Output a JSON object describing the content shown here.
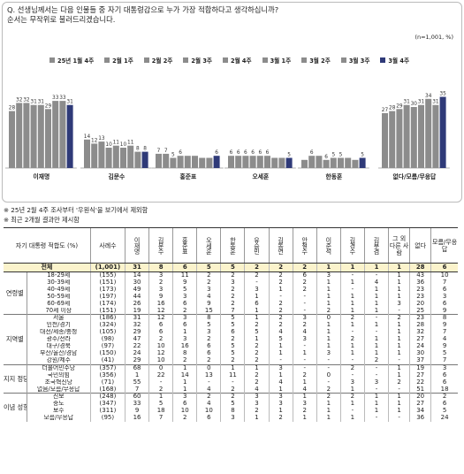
{
  "question_line1": "Q. 선생님께서는 다음 인물들 중 자기 대통령감으로 누가 가장 적합하다고 생각하십니까?",
  "question_line2": "순서는 무작위로 불러드리겠습니다.",
  "sample_note": "(n=1,001, %)",
  "note1": "※ 25년 2월 4주 조사부터 '우원식'을 보기에서 제외함",
  "note2": "※ 최근 2개월 결과만 제시함",
  "colors": {
    "gray": "#8c8c8c",
    "navy": "#2f3a78"
  },
  "chart_data": {
    "type": "bar",
    "periods": [
      "25년 1월 4주",
      "2월 1주",
      "2월 2주",
      "2월 3주",
      "2월 4주",
      "3월 1주",
      "3월 2주",
      "3월 3주",
      "3월 4주"
    ],
    "categories": [
      "이재명",
      "김문수",
      "홍준표",
      "오세훈",
      "한동훈",
      "없다/모름/무응답"
    ],
    "values": [
      [
        28,
        32,
        32,
        31,
        31,
        29,
        33,
        33,
        31
      ],
      [
        14,
        12,
        13,
        10,
        11,
        10,
        11,
        8,
        8
      ],
      [
        7,
        7,
        5,
        6,
        6,
        6,
        5,
        5,
        6
      ],
      [
        6,
        6,
        6,
        6,
        6,
        6,
        5,
        5,
        5
      ],
      [
        4,
        6,
        6,
        4,
        5,
        5,
        5,
        4,
        5
      ],
      [
        27,
        28,
        29,
        31,
        30,
        31,
        34,
        31,
        35
      ]
    ],
    "labels": [
      [
        "28",
        "32",
        "32",
        "31",
        "31",
        "29",
        "33",
        "33",
        "31"
      ],
      [
        "14",
        "12",
        "13",
        "10",
        "11",
        "10",
        "11",
        "8",
        "8"
      ],
      [
        "7",
        "7",
        "5",
        "6",
        "",
        "",
        "",
        "",
        "6"
      ],
      [
        "6",
        "6",
        "6",
        "6",
        "6",
        "6",
        "",
        "",
        "5"
      ],
      [
        "",
        "6",
        "",
        "6",
        "5",
        "5",
        "",
        "",
        "5"
      ],
      [
        "27",
        "28",
        "29",
        "31",
        "30",
        "31",
        "34",
        "31",
        "35"
      ]
    ]
  },
  "table": {
    "headers": [
      "자기 대통령 적합도 (%)",
      "사례수",
      "이재명",
      "김문수",
      "홍준표",
      "오세훈",
      "한동훈",
      "유승민",
      "김동연",
      "안철수",
      "이준석",
      "김경수",
      "김부겸",
      "그 외 다른 사람",
      "없다",
      "모름/무응답"
    ],
    "total": [
      "전체",
      "(1,001)",
      "31",
      "8",
      "6",
      "5",
      "5",
      "2",
      "2",
      "2",
      "1",
      "1",
      "1",
      "1",
      "28",
      "6"
    ],
    "groups": [
      {
        "name": "연령별",
        "rows": [
          [
            "18-29세",
            "(155)",
            "14",
            "3",
            "11",
            "2",
            "2",
            "2",
            "2",
            "6",
            "3",
            "-",
            "-",
            "1",
            "43",
            "10"
          ],
          [
            "30-39세",
            "(151)",
            "30",
            "2",
            "9",
            "2",
            "3",
            "-",
            "2",
            "2",
            "1",
            "1",
            "4",
            "1",
            "36",
            "7"
          ],
          [
            "40-49세",
            "(173)",
            "49",
            "3",
            "5",
            "3",
            "2",
            "3",
            "1",
            "2",
            "1",
            "-",
            "1",
            "1",
            "23",
            "6"
          ],
          [
            "50-59세",
            "(197)",
            "44",
            "9",
            "3",
            "4",
            "2",
            "1",
            "-",
            "-",
            "1",
            "1",
            "1",
            "1",
            "23",
            "3"
          ],
          [
            "60-69세",
            "(174)",
            "26",
            "16",
            "6",
            "9",
            "2",
            "6",
            "2",
            "-",
            "1",
            "1",
            "1",
            "3",
            "20",
            "6"
          ],
          [
            "70세 이상",
            "(151)",
            "19",
            "12",
            "2",
            "15",
            "7",
            "1",
            "2",
            "-",
            "2",
            "1",
            "1",
            "-",
            "25",
            "9"
          ]
        ]
      },
      {
        "name": "지역별",
        "rows": [
          [
            "서울",
            "(186)",
            "31",
            "12",
            "3",
            "8",
            "5",
            "1",
            "2",
            "3",
            "0",
            "2",
            "-",
            "2",
            "23",
            "8"
          ],
          [
            "인천/경기",
            "(324)",
            "32",
            "6",
            "6",
            "5",
            "5",
            "2",
            "2",
            "2",
            "1",
            "1",
            "1",
            "1",
            "28",
            "9"
          ],
          [
            "대전/세종/충청",
            "(105)",
            "29",
            "6",
            "1",
            "3",
            "6",
            "5",
            "4",
            "4",
            "1",
            "-",
            "-",
            "1",
            "32",
            "7"
          ],
          [
            "광주/전라",
            "(98)",
            "47",
            "2",
            "3",
            "2",
            "2",
            "1",
            "5",
            "3",
            "1",
            "2",
            "1",
            "1",
            "27",
            "4"
          ],
          [
            "대구/경북",
            "(97)",
            "22",
            "10",
            "16",
            "6",
            "5",
            "2",
            "1",
            "-",
            "1",
            "1",
            "1",
            "1",
            "24",
            "9"
          ],
          [
            "부산/울산/경남",
            "(150)",
            "24",
            "12",
            "8",
            "6",
            "5",
            "2",
            "1",
            "1",
            "3",
            "1",
            "1",
            "1",
            "30",
            "5"
          ],
          [
            "강원/제주",
            "(41)",
            "29",
            "10",
            "2",
            "2",
            "2",
            "2",
            "-",
            "-",
            "-",
            "-",
            "2",
            "-",
            "37",
            "7"
          ]
        ]
      },
      {
        "name": "지지 정당별",
        "rows": [
          [
            "더불어민주당",
            "(357)",
            "68",
            "0",
            "1",
            "0",
            "1",
            "1",
            "3",
            "-",
            "-",
            "2",
            "-",
            "1",
            "19",
            "3"
          ],
          [
            "국민의힘",
            "(356)",
            "1",
            "22",
            "14",
            "13",
            "11",
            "2",
            "1",
            "2",
            "0",
            "-",
            "-",
            "1",
            "27",
            "6"
          ],
          [
            "조국혁신당",
            "(71)",
            "55",
            "-",
            "1",
            "-",
            "-",
            "2",
            "4",
            "1",
            "-",
            "3",
            "3",
            "2",
            "22",
            "6"
          ],
          [
            "없음/모름/무응답",
            "(168)",
            "7",
            "2",
            "1",
            "4",
            "2",
            "4",
            "1",
            "4",
            "2",
            "1",
            "-",
            "-",
            "51",
            "18"
          ]
        ]
      },
      {
        "name": "이념 성향별",
        "rows": [
          [
            "진보",
            "(248)",
            "60",
            "1",
            "3",
            "2",
            "2",
            "3",
            "3",
            "1",
            "2",
            "2",
            "1",
            "1",
            "20",
            "2"
          ],
          [
            "중도",
            "(347)",
            "33",
            "5",
            "6",
            "4",
            "5",
            "3",
            "3",
            "3",
            "1",
            "1",
            "1",
            "1",
            "27",
            "6"
          ],
          [
            "보수",
            "(311)",
            "9",
            "18",
            "10",
            "10",
            "8",
            "2",
            "1",
            "2",
            "1",
            "-",
            "1",
            "1",
            "34",
            "5"
          ],
          [
            "모름/무응답",
            "(95)",
            "16",
            "7",
            "2",
            "6",
            "3",
            "1",
            "2",
            "1",
            "1",
            "1",
            "-",
            "-",
            "36",
            "24"
          ]
        ]
      }
    ]
  }
}
